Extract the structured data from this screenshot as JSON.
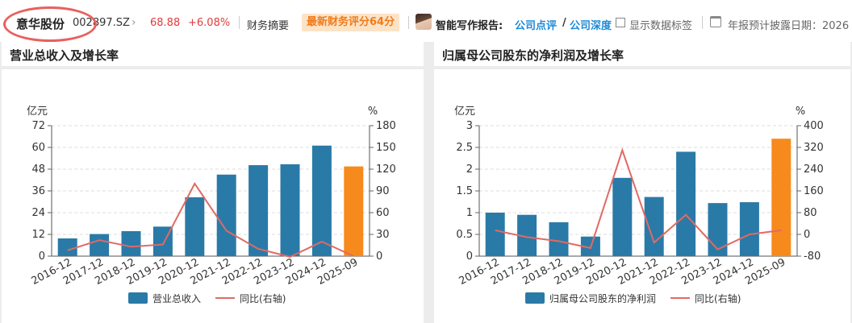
{
  "header": {
    "stock_name": "意华股份",
    "stock_code": "002897.SZ",
    "chevron_icon": "chevron-right-icon",
    "price": "68.88",
    "change_pct": "+6.08%",
    "fin_summary": "财务摘要",
    "fin_score_badge": "最新财务评分64分",
    "ai_label": "智能写作报告:",
    "ai_link_review": "公司点评",
    "ai_link_depth": "公司深度",
    "ai_link_separator": "/",
    "show_labels": "显示数据标签",
    "disclosure_label": "年报预计披露日期：2026",
    "colors": {
      "up": "#e23b3b",
      "link": "#1d8ad8",
      "badge_bg": "#fde3c6",
      "badge_text": "#f07b1a"
    }
  },
  "chart_data": [
    {
      "type": "bar",
      "title": "营业总收入及增长率",
      "categories": [
        "2016-12",
        "2017-12",
        "2018-12",
        "2019-12",
        "2020-12",
        "2021-12",
        "2022-12",
        "2023-12",
        "2024-12",
        "2025-09"
      ],
      "ylabel_left": "亿元",
      "ylabel_right": "%",
      "ylim_left": [
        0,
        72
      ],
      "yticks_left": [
        "0",
        "12",
        "24",
        "36",
        "48",
        "60",
        "72"
      ],
      "ylim_right": [
        0,
        180
      ],
      "yticks_right": [
        "0",
        "30",
        "60",
        "90",
        "120",
        "150",
        "180"
      ],
      "grid": true,
      "legend_position": "bottom",
      "series": [
        {
          "name": "营业总收入",
          "type": "bar",
          "axis": "left",
          "values": [
            9.8,
            12.2,
            13.8,
            16.3,
            32.5,
            45.0,
            50.2,
            50.7,
            61.0,
            49.5
          ],
          "color": "#2a7aa8",
          "highlight_last_color": "#f78a1c"
        },
        {
          "name": "同比(右轴)",
          "type": "line",
          "axis": "right",
          "values": [
            8,
            22,
            13,
            16,
            100,
            35,
            10,
            -1,
            20,
            0
          ],
          "color": "#e06a64"
        }
      ]
    },
    {
      "type": "bar",
      "title": "归属母公司股东的净利润及增长率",
      "categories": [
        "2016-12",
        "2017-12",
        "2018-12",
        "2019-12",
        "2020-12",
        "2021-12",
        "2022-12",
        "2023-12",
        "2024-12",
        "2025-09"
      ],
      "ylabel_left": "亿元",
      "ylabel_right": "%",
      "ylim_left": [
        0,
        3
      ],
      "yticks_left": [
        "0",
        "0.5",
        "1",
        "1.5",
        "2",
        "2.5",
        "3"
      ],
      "ylim_right": [
        -80,
        400
      ],
      "yticks_right": [
        "-80",
        "0",
        "80",
        "160",
        "240",
        "320",
        "400"
      ],
      "grid": true,
      "legend_position": "bottom",
      "series": [
        {
          "name": "归属母公司股东的净利润",
          "type": "bar",
          "axis": "left",
          "values": [
            1.0,
            0.95,
            0.78,
            0.45,
            1.8,
            1.36,
            2.4,
            1.22,
            1.24,
            2.7
          ],
          "color": "#2a7aa8",
          "highlight_last_color": "#f78a1c"
        },
        {
          "name": "同比(右轴)",
          "type": "line",
          "axis": "right",
          "values": [
            15,
            -10,
            -25,
            -50,
            310,
            -30,
            72,
            -55,
            0,
            15
          ],
          "color": "#e06a64"
        }
      ]
    }
  ]
}
